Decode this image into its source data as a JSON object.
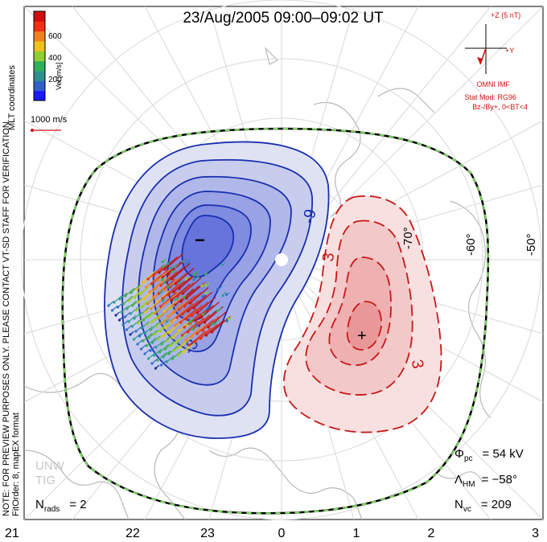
{
  "title": "23/Aug/2005 09:00–09:02 UT",
  "colorbar": {
    "title": "Vel [m/s]",
    "ticks": [
      "600",
      "400",
      "200"
    ],
    "colors": [
      "#1a1aff",
      "#3060c8",
      "#2f8f8f",
      "#2faf5a",
      "#8fd030",
      "#f0c020",
      "#f08020",
      "#f03010",
      "#d01010"
    ]
  },
  "left_labels": {
    "mlt": "MLT coordinates",
    "note": "NOTE: FOR PREVIEW PURPOSES ONLY. PLEASE CONTACT VT-SD STAFF FOR VERIFICATION.",
    "fit": "FitOrder: 8, mapEX format"
  },
  "reference_vector": "1000 m/s",
  "imf": {
    "z_label": "+Z (5 nT)",
    "y_label": "+Y",
    "source": "OMNI IMF",
    "model": "Stat Mod: RG96",
    "condition": "Bz-/By+, 0<BT<4"
  },
  "contour_labels": [
    "-9",
    "-3",
    "3",
    "3"
  ],
  "extrema": {
    "min": "−",
    "max": "+"
  },
  "lat_labels": [
    "-50°",
    "-60°",
    "-70°"
  ],
  "stats": {
    "phi_symbol": "Φ",
    "phi_sub": "pc",
    "phi_value": "= 54 kV",
    "lambda_symbol": "Λ",
    "lambda_sub": "HM",
    "lambda_value": "= −58°",
    "nvc_symbol": "N",
    "nvc_sub": "vc",
    "nvc_value": "= 209",
    "nrads_symbol": "N",
    "nrads_sub": "rads",
    "nrads_value": "= 2"
  },
  "watermark": [
    "UNW",
    "TIG"
  ],
  "mlt_ticks": [
    "21",
    "22",
    "23",
    "0",
    "1",
    "2",
    "3"
  ]
}
